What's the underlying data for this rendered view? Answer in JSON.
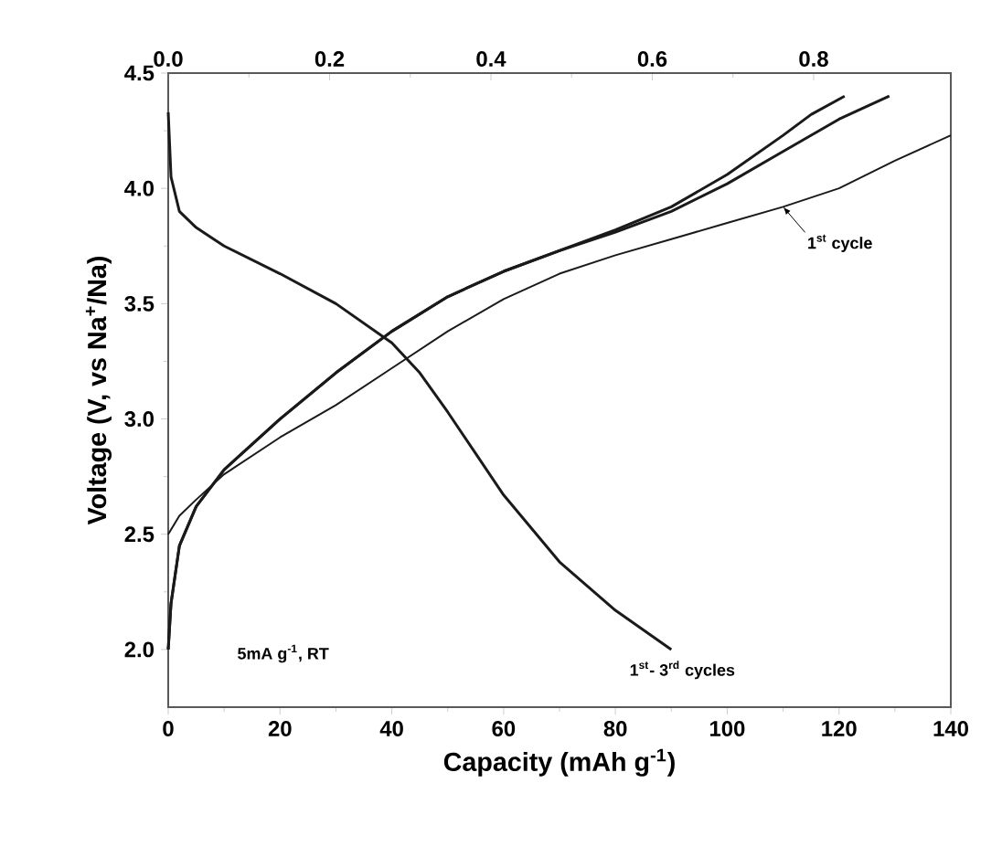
{
  "chart_data": {
    "type": "line",
    "xlabel": "Capacity (mAh g$^{-1}$)",
    "ylabel": "Voltage (V, vs Na$^{+}$/Na)",
    "xlim": [
      0,
      140
    ],
    "ylim": [
      1.75,
      4.5
    ],
    "xticks": [
      0,
      20,
      40,
      60,
      80,
      100,
      120,
      140
    ],
    "yticks": [
      {
        "value": 2.0,
        "label": "2.0"
      },
      {
        "value": 2.5,
        "label": "2.5"
      },
      {
        "value": 3.0,
        "label": "3.0"
      },
      {
        "value": 3.5,
        "label": "3.5"
      },
      {
        "value": 4.0,
        "label": "4.0"
      },
      {
        "value": 4.5,
        "label": "4.5"
      }
    ],
    "x2lim": [
      0,
      0.97
    ],
    "x2ticks": [
      {
        "value": 0,
        "label": "0.0"
      },
      {
        "value": 0.2,
        "label": "0.2"
      },
      {
        "value": 0.4,
        "label": "0.4"
      },
      {
        "value": 0.6,
        "label": "0.6"
      },
      {
        "value": 0.8,
        "label": "0.8"
      }
    ],
    "marker": "none",
    "line_style": "solid",
    "series": [
      {
        "color": "#1a1a1a",
        "x": [
          0,
          0.5,
          2,
          5,
          10,
          20,
          30,
          40,
          45,
          50,
          55,
          60,
          70,
          80,
          90
        ],
        "values": [
          4.33,
          4.05,
          3.9,
          3.83,
          3.75,
          3.63,
          3.5,
          3.33,
          3.2,
          3.03,
          2.85,
          2.67,
          2.38,
          2.17,
          2.0
        ]
      },
      {
        "color": "#1a1a1a",
        "x": [
          0,
          0.5,
          2,
          5,
          10,
          20,
          30,
          40,
          50,
          60,
          70,
          80,
          90,
          100,
          110,
          115,
          121
        ],
        "values": [
          2.0,
          2.2,
          2.45,
          2.62,
          2.78,
          3.0,
          3.2,
          3.38,
          3.53,
          3.64,
          3.73,
          3.82,
          3.92,
          4.06,
          4.23,
          4.32,
          4.4
        ]
      },
      {
        "color": "#1a1a1a",
        "x": [
          0,
          0.5,
          2,
          5,
          10,
          20,
          30,
          40,
          50,
          60,
          70,
          80,
          90,
          100,
          110,
          120,
          129
        ],
        "values": [
          2.0,
          2.2,
          2.45,
          2.62,
          2.78,
          3.0,
          3.2,
          3.38,
          3.53,
          3.64,
          3.73,
          3.81,
          3.9,
          4.02,
          4.16,
          4.3,
          4.4
        ]
      },
      {
        "color": "#1a1a1a",
        "x": [
          0,
          2,
          5,
          10,
          20,
          30,
          40,
          50,
          60,
          70,
          80,
          90,
          100,
          110,
          120,
          130,
          140
        ],
        "values": [
          2.5,
          2.58,
          2.65,
          2.76,
          2.92,
          3.06,
          3.22,
          3.38,
          3.52,
          3.63,
          3.71,
          3.78,
          3.85,
          3.92,
          4.0,
          4.12,
          4.23
        ]
      }
    ],
    "annotations": [
      {
        "text": "1$^{st}$ cycle",
        "x": 110,
        "y": 3.92
      },
      {
        "text": "1$^{st}$- 3$^{rd}$ cycles",
        "x": 90,
        "y": 2.0
      },
      "5mA g$^{-1}$, RT"
    ]
  }
}
